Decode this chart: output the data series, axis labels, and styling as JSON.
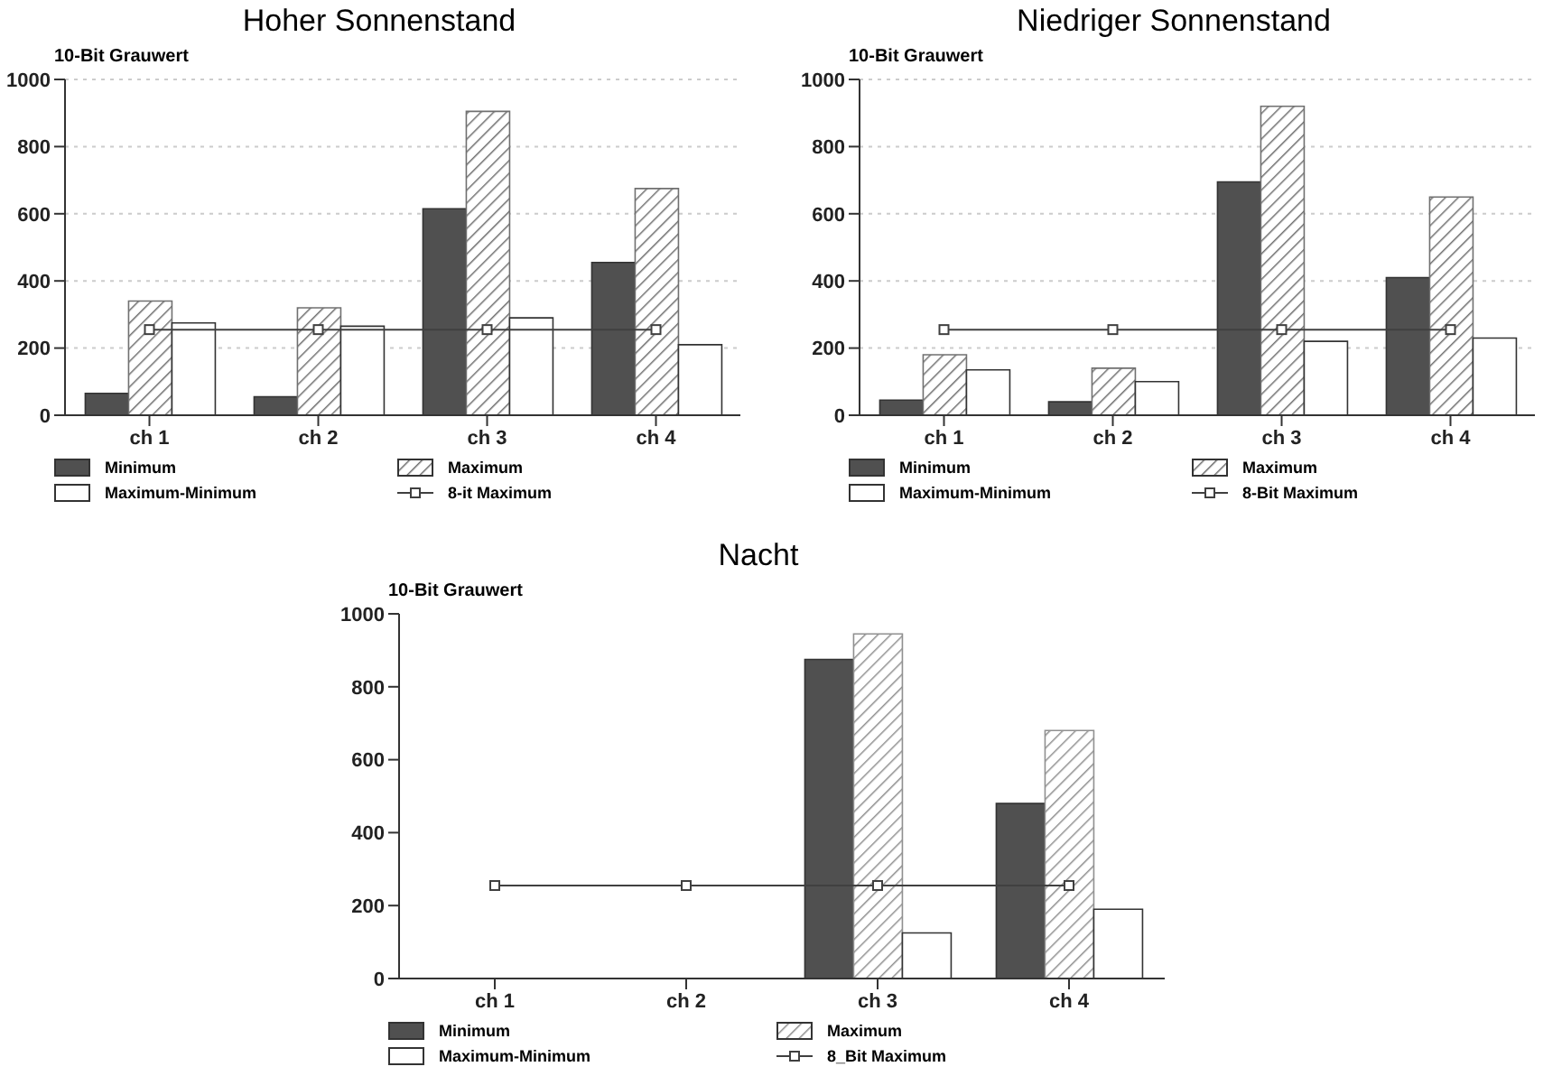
{
  "chart_data": [
    {
      "type": "bar",
      "title": "Hoher Sonnenstand",
      "ylabel": "10-Bit Grauwert",
      "categories": [
        "ch 1",
        "ch 2",
        "ch 3",
        "ch 4"
      ],
      "ylim": [
        0,
        1000
      ],
      "yticks": [
        0,
        200,
        400,
        600,
        800,
        1000
      ],
      "grid": "y",
      "legend": "bottom",
      "series": [
        {
          "name": "Minimum",
          "color": "#505050",
          "values": [
            65,
            55,
            615,
            455
          ]
        },
        {
          "name": "Maximum",
          "color": "#707070",
          "values": [
            340,
            320,
            905,
            675
          ]
        },
        {
          "name": "Maximum-Minimum",
          "color": "#ffffff",
          "values": [
            275,
            265,
            290,
            210
          ]
        },
        {
          "name": "8-it Maximum",
          "type": "line",
          "color": "#404040",
          "marker": "square",
          "values": [
            255,
            255,
            255,
            255
          ]
        }
      ]
    },
    {
      "type": "bar",
      "title": "Niedriger Sonnenstand",
      "ylabel": "10-Bit Grauwert",
      "categories": [
        "ch 1",
        "ch 2",
        "ch 3",
        "ch 4"
      ],
      "ylim": [
        0,
        1000
      ],
      "yticks": [
        0,
        200,
        400,
        600,
        800,
        1000
      ],
      "grid": "y",
      "legend": "bottom",
      "series": [
        {
          "name": "Minimum",
          "color": "#505050",
          "values": [
            45,
            40,
            695,
            410
          ]
        },
        {
          "name": "Maximum",
          "color": "#707070",
          "values": [
            180,
            140,
            920,
            650
          ]
        },
        {
          "name": "Maximum-Minimum",
          "color": "#ffffff",
          "values": [
            135,
            100,
            220,
            230
          ]
        },
        {
          "name": "8-Bit Maximum",
          "type": "line",
          "color": "#404040",
          "marker": "square",
          "values": [
            255,
            255,
            255,
            255
          ]
        }
      ]
    },
    {
      "type": "bar",
      "title": "Nacht",
      "ylabel": "10-Bit Grauwert",
      "categories": [
        "ch 1",
        "ch 2",
        "ch 3",
        "ch 4"
      ],
      "ylim": [
        0,
        1000
      ],
      "yticks": [
        0,
        200,
        400,
        600,
        800,
        1000
      ],
      "grid": false,
      "legend": "bottom",
      "series": [
        {
          "name": "Minimum",
          "color": "#505050",
          "values": [
            null,
            null,
            875,
            480
          ]
        },
        {
          "name": "Maximum",
          "color": "#909090",
          "values": [
            null,
            null,
            945,
            680
          ]
        },
        {
          "name": "Maximum-Minimum",
          "color": "#ffffff",
          "values": [
            null,
            null,
            125,
            190
          ]
        },
        {
          "name": "8_Bit Maximum",
          "type": "line",
          "color": "#404040",
          "marker": "square",
          "values": [
            255,
            255,
            255,
            255
          ]
        }
      ]
    }
  ]
}
